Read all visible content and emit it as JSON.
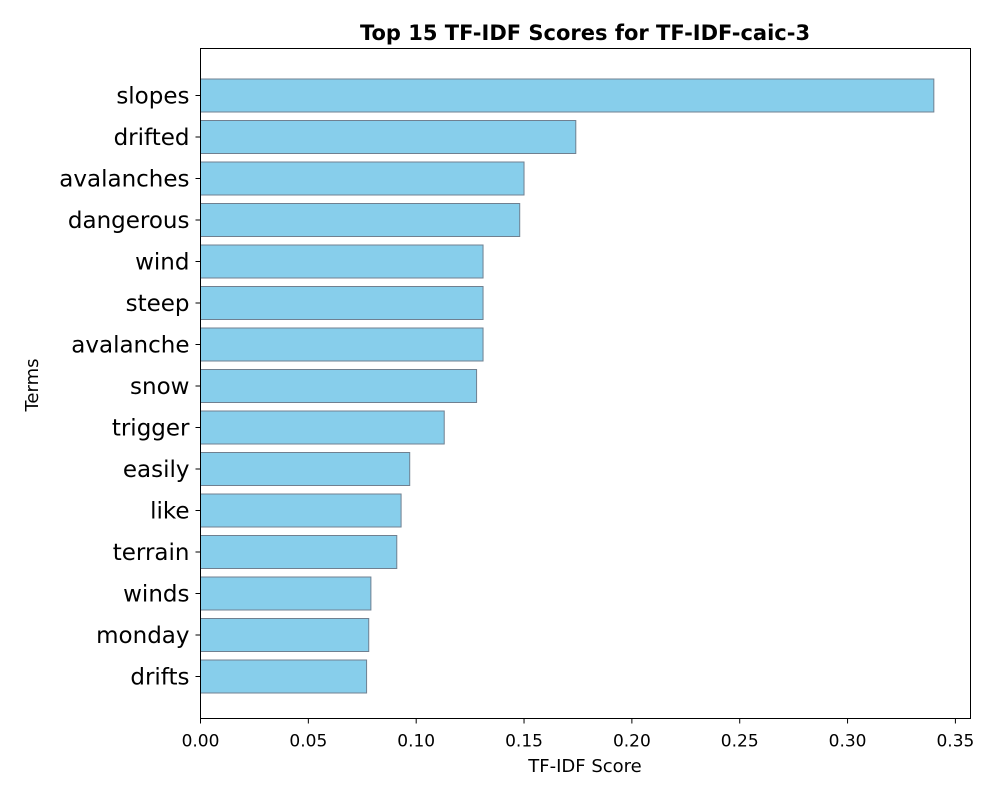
{
  "chart_data": {
    "type": "bar",
    "orientation": "horizontal",
    "title": "Top 15 TF-IDF Scores for TF-IDF-caic-3",
    "xlabel": "TF-IDF Score",
    "ylabel": "Terms",
    "categories": [
      "slopes",
      "drifted",
      "avalanches",
      "dangerous",
      "wind",
      "steep",
      "avalanche",
      "snow",
      "trigger",
      "easily",
      "like",
      "terrain",
      "winds",
      "monday",
      "drifts"
    ],
    "values": [
      0.34,
      0.174,
      0.15,
      0.148,
      0.131,
      0.131,
      0.131,
      0.128,
      0.113,
      0.097,
      0.093,
      0.091,
      0.079,
      0.078,
      0.077
    ],
    "xlim": [
      0,
      0.357
    ],
    "xticks": [
      0.0,
      0.05,
      0.1,
      0.15,
      0.2,
      0.25,
      0.3,
      0.35
    ],
    "xtick_labels": [
      "0.00",
      "0.05",
      "0.10",
      "0.15",
      "0.20",
      "0.25",
      "0.30",
      "0.35"
    ],
    "grid": false,
    "legend": "none",
    "bar_color": "#87CEEB",
    "bar_edge_color": "#708090"
  }
}
